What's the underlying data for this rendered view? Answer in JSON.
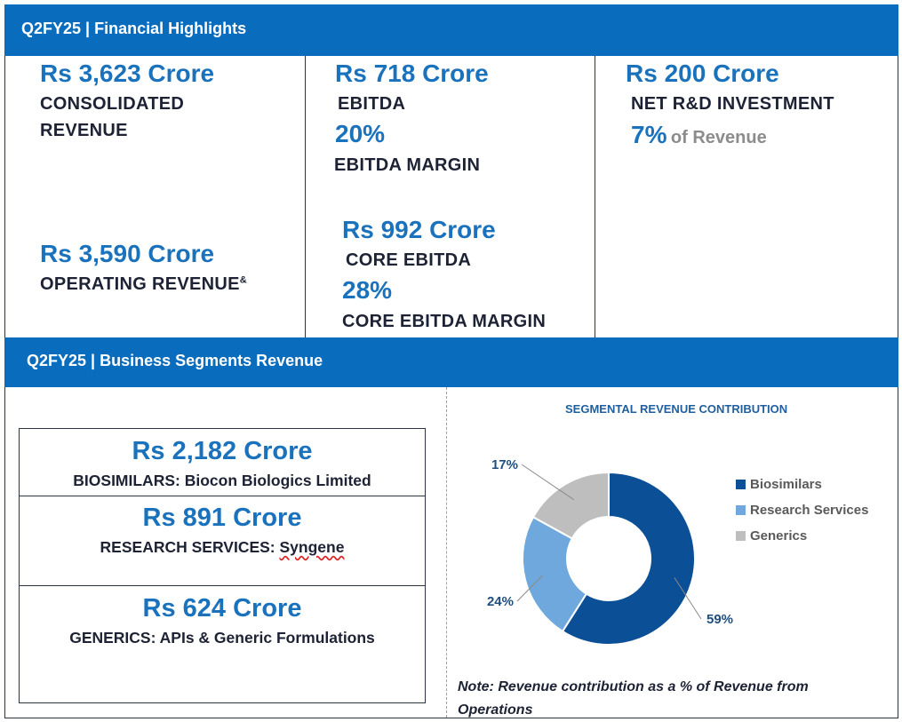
{
  "financial": {
    "title": "Q2FY25 | Financial Highlights",
    "consolidated_revenue": {
      "value": "Rs 3,623 Crore",
      "label_line1": "CONSOLIDATED",
      "label_line2": "REVENUE"
    },
    "operating_revenue": {
      "value": "Rs 3,590 Crore",
      "label": "OPERATING REVENUE",
      "sup": "&"
    },
    "ebitda": {
      "value": "Rs 718 Crore",
      "label": "EBITDA",
      "margin_value": "20%",
      "margin_label": "EBITDA MARGIN"
    },
    "core_ebitda": {
      "value": "Rs 992 Crore",
      "label": "CORE EBITDA",
      "margin_value": "28%",
      "margin_label": "CORE EBITDA MARGIN"
    },
    "rnd": {
      "value": "Rs 200 Crore",
      "label": "NET R&D INVESTMENT",
      "pct": "7%",
      "pct_suffix": "of Revenue"
    }
  },
  "segments": {
    "title": "Q2FY25 | Business Segments Revenue",
    "items": [
      {
        "value": "Rs 2,182 Crore",
        "label_prefix": "BIOSIMILARS: ",
        "label_rest": "Biocon Biologics Limited"
      },
      {
        "value": "Rs 891 Crore",
        "label_prefix": "RESEARCH SERVICES: ",
        "label_rest": "Syngene"
      },
      {
        "value": "Rs 624 Crore",
        "label_prefix": "GENERICS: ",
        "label_rest": "APIs & Generic Formulations"
      }
    ],
    "note_line1": "Note: Revenue contribution as a % of Revenue from",
    "note_line2": "Operations"
  },
  "chart_data": {
    "type": "pie",
    "donut": true,
    "title": "SEGMENTAL REVENUE CONTRIBUTION",
    "legend_position": "right",
    "categories": [
      "Biosimilars",
      "Research Services",
      "Generics"
    ],
    "values": [
      59,
      24,
      17
    ],
    "data_labels": [
      "59%",
      "24%",
      "17%"
    ],
    "colors": [
      "#0b4f96",
      "#6ea8dc",
      "#bebebe"
    ]
  },
  "colors": {
    "header_bar": "#0a6cbd",
    "accent_text": "#1a72bd",
    "dark_text": "#1d2234"
  }
}
